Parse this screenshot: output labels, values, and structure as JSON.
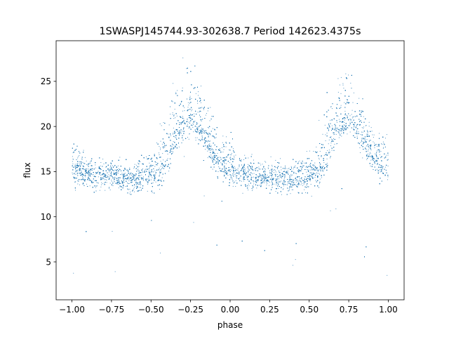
{
  "chart_data": {
    "type": "scatter",
    "title": "1SWASPJ145744.93-302638.7 Period 142623.4375s",
    "xlabel": "phase",
    "ylabel": "flux",
    "xlim": [
      -1.1,
      1.1
    ],
    "ylim": [
      0.8,
      29.5
    ],
    "xticks": [
      -1.0,
      -0.75,
      -0.5,
      -0.25,
      0.0,
      0.25,
      0.5,
      0.75,
      1.0
    ],
    "xtick_labels": [
      "−1.00",
      "−0.75",
      "−0.50",
      "−0.25",
      "0.00",
      "0.25",
      "0.50",
      "0.75",
      "1.00"
    ],
    "yticks": [
      5,
      10,
      15,
      20,
      25
    ],
    "ytick_labels": [
      "5",
      "10",
      "15",
      "20",
      "25"
    ],
    "grid": false,
    "marker_color": "#1f77b4",
    "series": [
      {
        "x": [
          -1.0,
          -0.95,
          -0.9,
          -0.85,
          -0.8,
          -0.75,
          -0.7,
          -0.65,
          -0.6,
          -0.55,
          -0.5,
          -0.45,
          -0.4,
          -0.35,
          -0.3,
          -0.25,
          -0.2,
          -0.15,
          -0.1,
          -0.05,
          0.0,
          0.05,
          0.1,
          0.15,
          0.2,
          0.25,
          0.3,
          0.35,
          0.4,
          0.45,
          0.5,
          0.55,
          0.6,
          0.65,
          0.7,
          0.75,
          0.8,
          0.85,
          0.9,
          0.95,
          1.0
        ],
        "y": [
          15.2,
          15.3,
          14.8,
          14.6,
          14.5,
          14.6,
          14.4,
          14.3,
          14.2,
          14.3,
          14.6,
          15.0,
          16.4,
          18.8,
          20.8,
          21.4,
          20.2,
          18.4,
          16.8,
          15.8,
          15.3,
          15.1,
          14.8,
          14.6,
          14.5,
          14.6,
          14.4,
          14.3,
          14.2,
          14.3,
          14.6,
          15.0,
          16.4,
          18.8,
          20.8,
          21.4,
          20.2,
          18.4,
          16.8,
          15.8,
          15.3
        ],
        "spread_low": [
          2.5,
          2.4,
          2.3,
          2.3,
          2.3,
          2.4,
          2.4,
          2.4,
          2.4,
          2.4,
          2.6,
          2.8,
          3.0,
          3.0,
          3.2,
          3.4,
          3.2,
          3.0,
          2.8,
          2.6,
          2.5,
          2.4,
          2.3,
          2.3,
          2.3,
          2.4,
          2.4,
          2.4,
          2.4,
          2.4,
          2.6,
          2.8,
          3.0,
          3.0,
          3.2,
          3.4,
          3.2,
          3.0,
          2.8,
          2.6,
          2.5
        ],
        "spread_high": [
          5.5,
          3.2,
          2.5,
          2.4,
          2.4,
          2.5,
          2.5,
          2.5,
          2.6,
          3.0,
          3.8,
          5.5,
          7.5,
          8.0,
          7.6,
          7.0,
          6.6,
          6.2,
          5.6,
          4.8,
          4.0,
          3.2,
          2.6,
          2.5,
          2.4,
          2.5,
          2.5,
          2.5,
          2.6,
          3.0,
          3.8,
          5.5,
          7.5,
          8.0,
          7.6,
          7.0,
          6.6,
          6.2,
          5.6,
          5.2,
          5.5
        ]
      }
    ]
  }
}
